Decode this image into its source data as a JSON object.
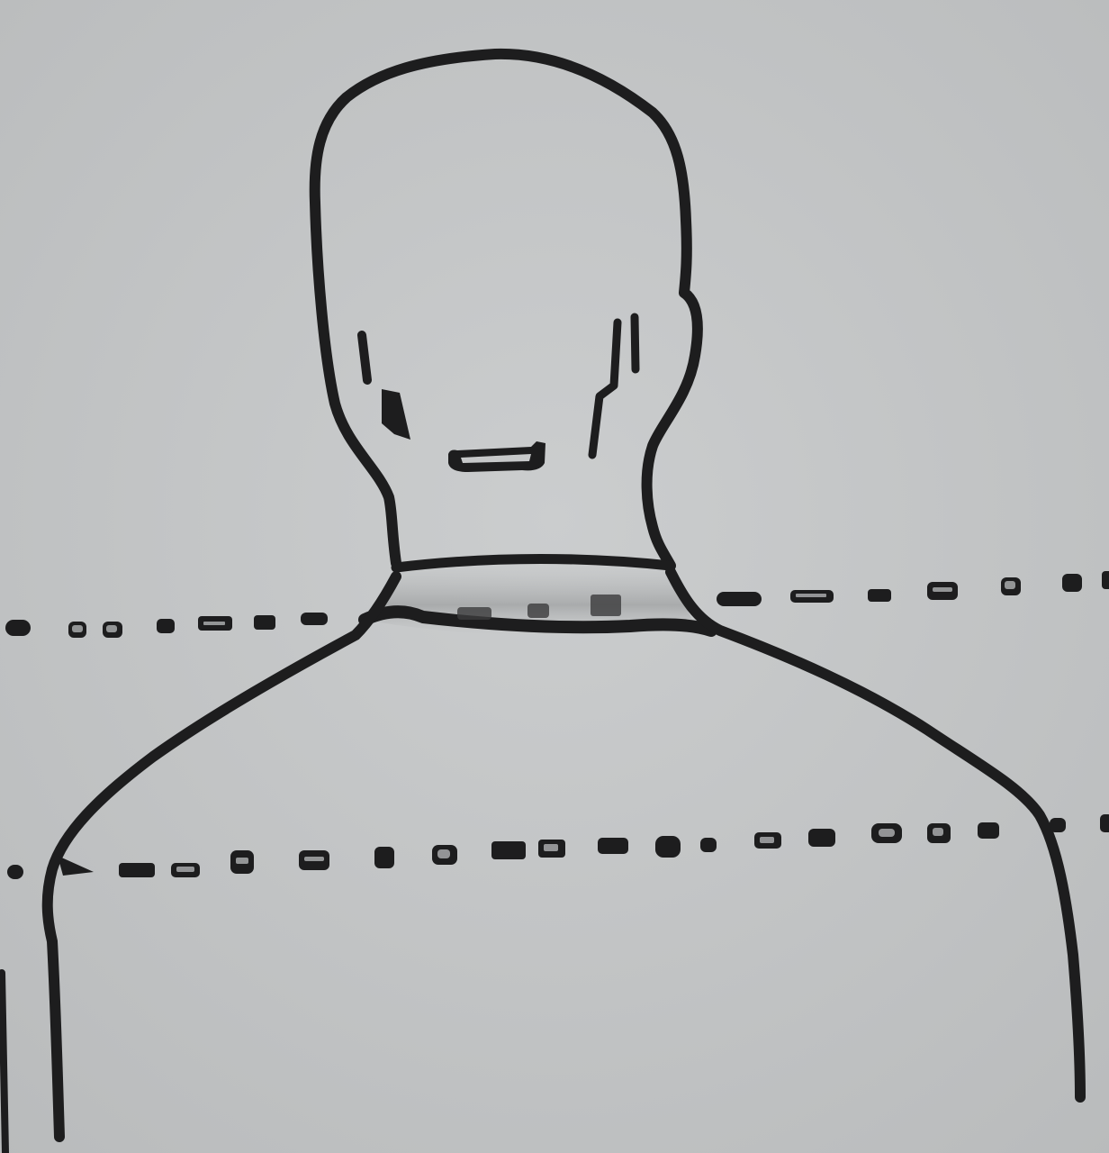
{
  "figure": {
    "subject": "bust-outline-drawing",
    "colors": {
      "background": "#c6c8c9",
      "background_edge": "#b9bbbc",
      "ink": "#1d1d1e",
      "ink_soft": "#3b3b3c",
      "collar_shade": "#9fa1a2"
    }
  }
}
